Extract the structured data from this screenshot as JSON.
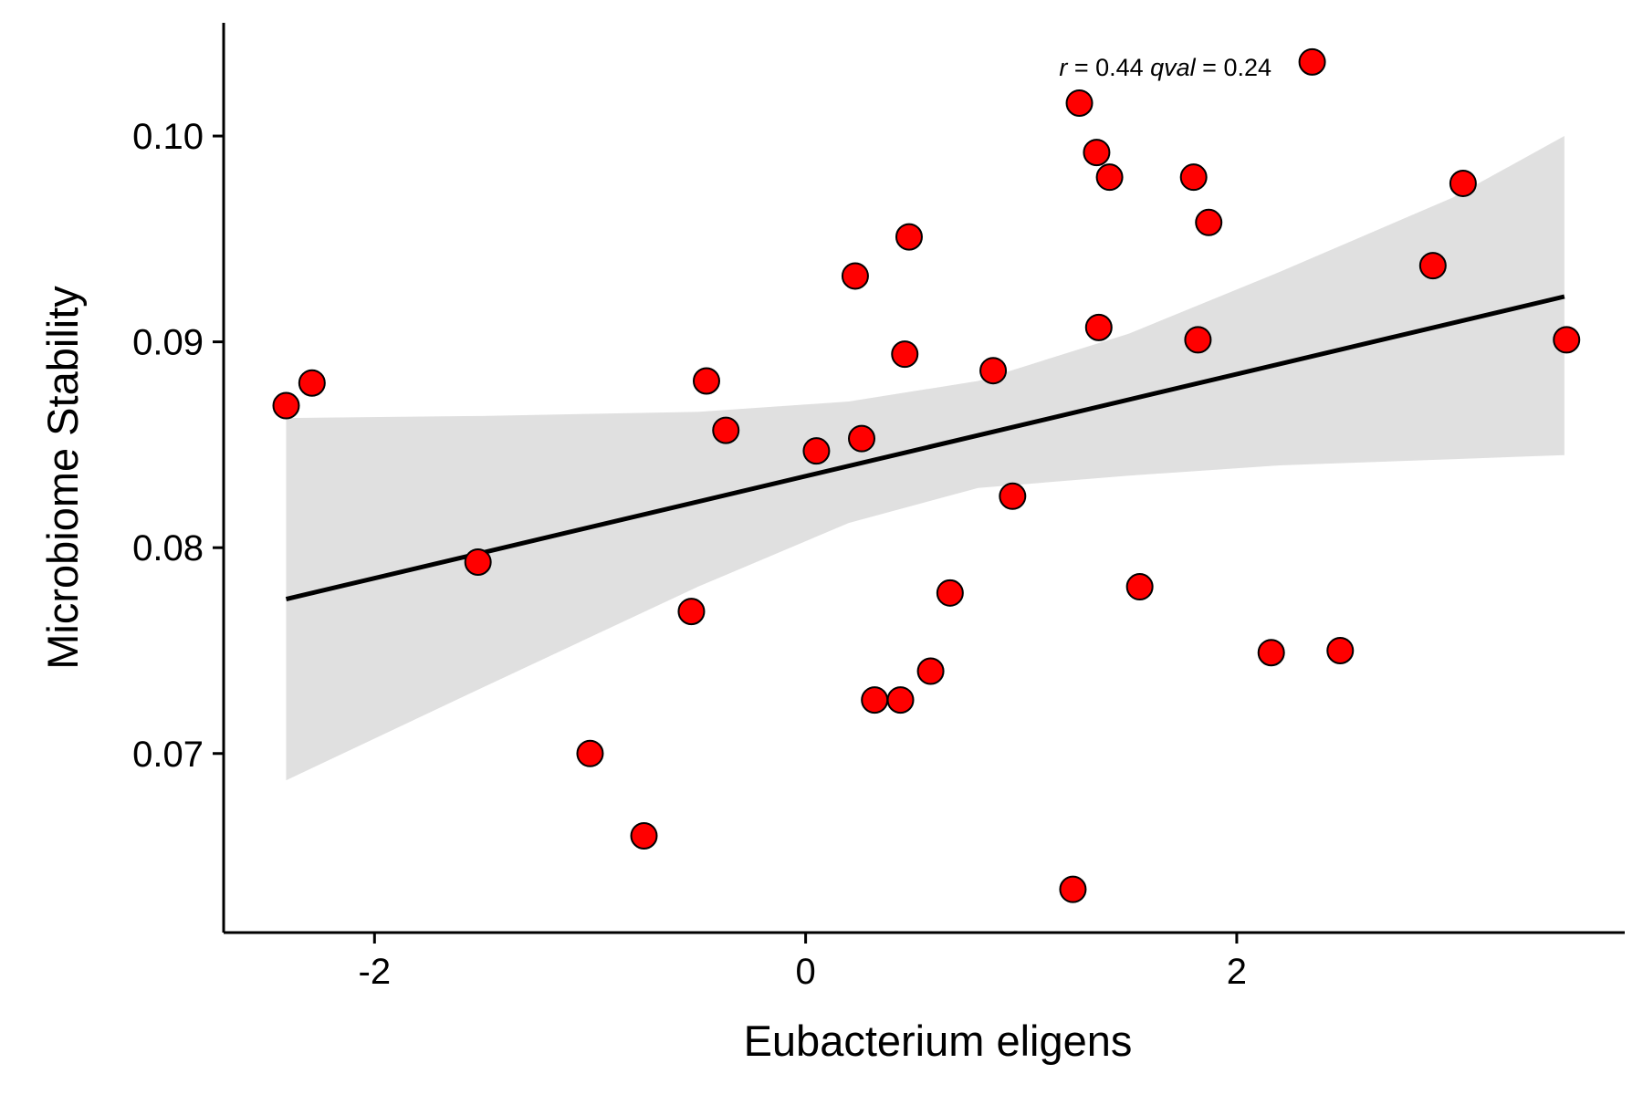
{
  "chart_data": {
    "type": "scatter",
    "xlabel": "Eubacterium eligens",
    "ylabel": "Microbiome Stability",
    "xlim": [
      -2.7,
      3.8
    ],
    "ylim": [
      0.0613,
      0.1055
    ],
    "xticks": [
      -2,
      0,
      2
    ],
    "xtick_labels": [
      "-2",
      "0",
      "2"
    ],
    "yticks": [
      0.07,
      0.08,
      0.09,
      0.1
    ],
    "ytick_labels": [
      "0.07",
      "0.08",
      "0.09",
      "0.10"
    ],
    "grid": false,
    "legend": "none",
    "point_color": "#ff0000",
    "point_stroke": "#000000",
    "fit_color": "#000000",
    "band_color": "#e0e0e0",
    "annotation": {
      "r_symbol": "r",
      "r_eq": " = 0.44 ",
      "q_symbol": "qval",
      "q_eq": " = 0.24"
    },
    "fit": {
      "x_start": -2.41,
      "x_end": 3.52,
      "y_start": 0.0775,
      "y_end": 0.0922
    },
    "band": {
      "x": [
        -2.41,
        -1.5,
        -0.5,
        0.2,
        0.8,
        1.5,
        2.2,
        3.0,
        3.52
      ],
      "upper": [
        0.0863,
        0.0864,
        0.0866,
        0.0871,
        0.0881,
        0.0904,
        0.0934,
        0.097,
        0.1
      ],
      "lower": [
        0.0687,
        0.0732,
        0.0781,
        0.0812,
        0.0829,
        0.0835,
        0.084,
        0.0843,
        0.0845
      ]
    },
    "points": [
      {
        "x": -2.41,
        "y": 0.0869
      },
      {
        "x": -2.29,
        "y": 0.088
      },
      {
        "x": -1.52,
        "y": 0.0793
      },
      {
        "x": -1.0,
        "y": 0.07
      },
      {
        "x": -0.75,
        "y": 0.066
      },
      {
        "x": -0.53,
        "y": 0.0769
      },
      {
        "x": -0.46,
        "y": 0.0881
      },
      {
        "x": -0.37,
        "y": 0.0857
      },
      {
        "x": 0.05,
        "y": 0.0847
      },
      {
        "x": 0.23,
        "y": 0.0932
      },
      {
        "x": 0.26,
        "y": 0.0853
      },
      {
        "x": 0.32,
        "y": 0.0726
      },
      {
        "x": 0.44,
        "y": 0.0726
      },
      {
        "x": 0.46,
        "y": 0.0894
      },
      {
        "x": 0.48,
        "y": 0.0951
      },
      {
        "x": 0.58,
        "y": 0.074
      },
      {
        "x": 0.67,
        "y": 0.0778
      },
      {
        "x": 0.87,
        "y": 0.0886
      },
      {
        "x": 0.96,
        "y": 0.0825
      },
      {
        "x": 1.24,
        "y": 0.0634
      },
      {
        "x": 1.27,
        "y": 0.1016
      },
      {
        "x": 1.35,
        "y": 0.0992
      },
      {
        "x": 1.36,
        "y": 0.0907
      },
      {
        "x": 1.41,
        "y": 0.098
      },
      {
        "x": 1.55,
        "y": 0.0781
      },
      {
        "x": 1.8,
        "y": 0.098
      },
      {
        "x": 1.82,
        "y": 0.0901
      },
      {
        "x": 1.87,
        "y": 0.0958
      },
      {
        "x": 2.16,
        "y": 0.0749
      },
      {
        "x": 2.35,
        "y": 0.1036
      },
      {
        "x": 2.48,
        "y": 0.075
      },
      {
        "x": 2.91,
        "y": 0.0937
      },
      {
        "x": 3.05,
        "y": 0.0977
      },
      {
        "x": 3.53,
        "y": 0.0901
      }
    ]
  }
}
